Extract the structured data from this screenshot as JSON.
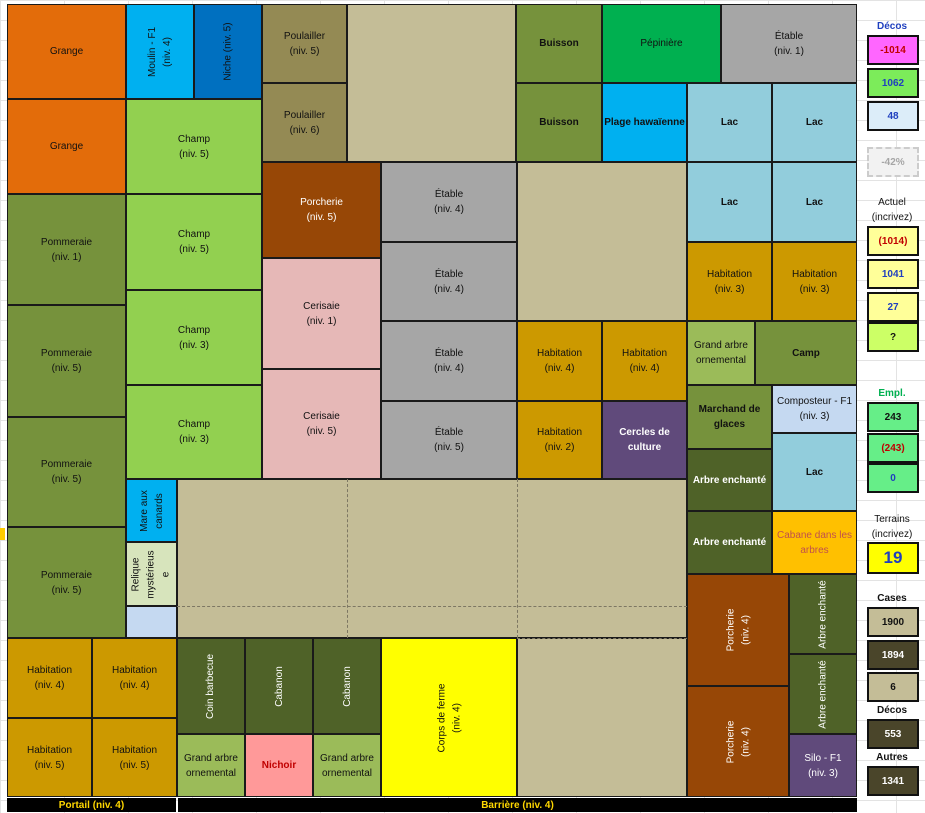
{
  "colors": {
    "grange": "#e36c0a",
    "blue_bright": "#00b0f0",
    "blue_dark": "#0070c0",
    "poulailler": "#948a54",
    "tan": "#c4bd97",
    "olive": "#76923c",
    "green_bright": "#00b050",
    "gray": "#a6a6a6",
    "lake": "#92cddc",
    "champ": "#92d050",
    "porcherie": "#974706",
    "cerisaie": "#e6b8b7",
    "habitation": "#cc9900",
    "purple": "#604a7b",
    "dark_green": "#4f6228",
    "yellow": "#ffff00",
    "salmon": "#ff9999",
    "light_green": "#9bbb59",
    "pale_blue": "#c5d9f1",
    "relique": "#d7e4bc",
    "cabane": "#ffc000"
  },
  "map": {
    "grange_1": "Grange",
    "moulin": "Moulin - F1\n(niv. 4)",
    "niche": "Niche (niv. 5)",
    "poulailler_1": "Poulailler\n(niv. 5)",
    "buisson_1": "Buisson",
    "pepiniere": "Pépinière",
    "etable_top": "Étable\n(niv. 1)",
    "grange_2": "Grange",
    "champ_1": "Champ\n(niv. 5)",
    "poulailler_2": "Poulailler\n(niv. 6)",
    "buisson_2": "Buisson",
    "plage": "Plage hawaïenne",
    "lac_1": "Lac",
    "lac_2": "Lac",
    "pommeraie_1": "Pommeraie\n(niv. 1)",
    "champ_2": "Champ\n(niv. 5)",
    "porcherie_1": "Porcherie\n(niv. 5)",
    "etable_2": "Étable\n(niv. 4)",
    "lac_3": "Lac",
    "lac_4": "Lac",
    "cerisaie_1": "Cerisaie\n(niv. 1)",
    "etable_3": "Étable\n(niv. 4)",
    "habitation_r1": "Habitation\n(niv. 3)",
    "habitation_r2": "Habitation\n(niv. 3)",
    "pommeraie_2": "Pommeraie\n(niv. 5)",
    "champ_3": "Champ\n(niv. 3)",
    "etable_4": "Étable\n(niv. 4)",
    "habitation_m1": "Habitation\n(niv. 4)",
    "habitation_m2": "Habitation\n(niv. 4)",
    "grand_arbre_1": "Grand arbre\nornemental",
    "camp": "Camp",
    "cerisaie_2": "Cerisaie\n(niv. 5)",
    "champ_4": "Champ\n(niv. 3)",
    "etable_5": "Étable\n(niv. 5)",
    "habitation_m3": "Habitation\n(niv. 2)",
    "cercles": "Cercles de\nculture",
    "marchand": "Marchand de\nglaces",
    "composteur": "Composteur - F1\n(niv. 3)",
    "pommeraie_3": "Pommeraie\n(niv. 5)",
    "mare": "Mare aux\ncanards",
    "arbre_1": "Arbre enchanté",
    "lac_5": "Lac",
    "arbre_2": "Arbre enchanté",
    "cabane": "Cabane dans les\narbres",
    "pommeraie_4": "Pommeraie\n(niv. 5)",
    "relique": "Relique\nmystérieus\ne",
    "porcherie_2": "Porcherie\n(niv. 4)",
    "arbre_v1": "Arbre enchanté",
    "arbre_v2": "Arbre enchanté",
    "habitation_b1": "Habitation\n(niv. 4)",
    "habitation_b2": "Habitation\n(niv. 4)",
    "coin_barbecue": "Coin barbecue",
    "cabanon_1": "Cabanon",
    "cabanon_2": "Cabanon",
    "corps_de_ferme": "Corps de ferme\n(niv. 4)",
    "porcherie_3": "Porcherie\n(niv. 4)",
    "habitation_b3": "Habitation\n(niv. 5)",
    "habitation_b4": "Habitation\n(niv. 5)",
    "grand_arbre_2": "Grand arbre\nornemental",
    "nichoir": "Nichoir",
    "grand_arbre_3": "Grand arbre\nornemental",
    "silo": "Silo - F1\n(niv. 3)",
    "portail": "Portail (niv. 4)",
    "barriere": "Barrière (niv. 4)"
  },
  "sidebar": {
    "decos_title": "Décos",
    "decos_values": [
      "-1014",
      "1062",
      "48"
    ],
    "percent": "-42%",
    "actuel_title": "Actuel",
    "incrivez_1": "(incrivez)",
    "actuel_values": [
      "(1014)",
      "1041",
      "27",
      "?"
    ],
    "empl_title": "Empl.",
    "empl_values": [
      "243",
      "(243)",
      "0"
    ],
    "terrains_title": "Terrains",
    "incrivez_2": "(incrivez)",
    "terrains_value": "19",
    "cases_title": "Cases",
    "cases_values": [
      "1900",
      "1894",
      "6"
    ],
    "decos2_title": "Décos",
    "decos2_value": "553",
    "autres_title": "Autres",
    "autres_value": "1341"
  }
}
